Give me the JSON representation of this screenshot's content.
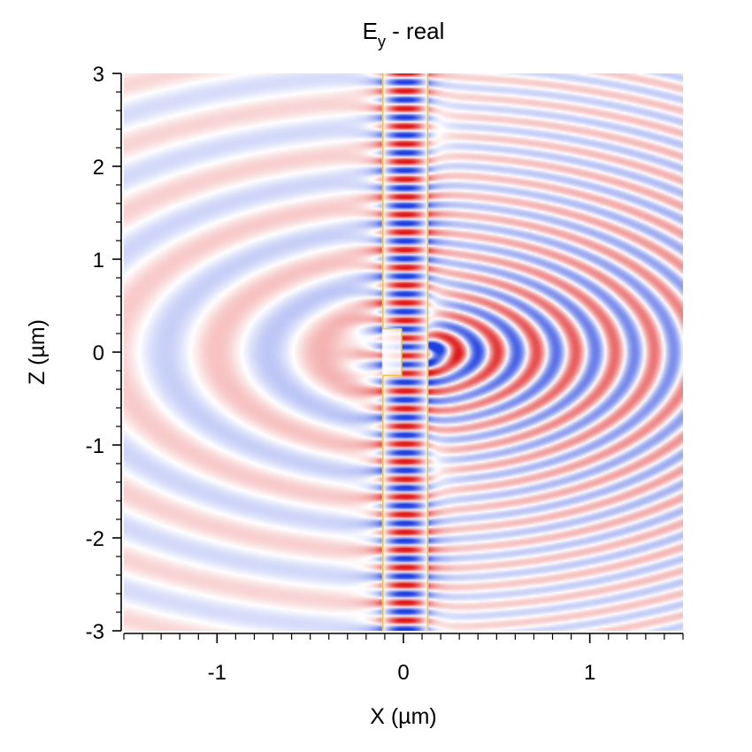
{
  "chart_data": {
    "type": "heatmap",
    "title": {
      "symbol": "E",
      "subscript": "y",
      "suffix": " - real"
    },
    "xlabel": "X (µm)",
    "ylabel": "Z (µm)",
    "xlim": [
      -1.5,
      1.5
    ],
    "ylim": [
      -3,
      3
    ],
    "x_ticks": [
      {
        "value": -1,
        "label": "-1"
      },
      {
        "value": 0,
        "label": "0"
      },
      {
        "value": 1,
        "label": "1"
      }
    ],
    "y_ticks": [
      {
        "value": 3,
        "label": "3"
      },
      {
        "value": 2,
        "label": "2"
      },
      {
        "value": 1,
        "label": "1"
      },
      {
        "value": 0,
        "label": "0"
      },
      {
        "value": -1,
        "label": "-1"
      },
      {
        "value": -2,
        "label": "-2"
      },
      {
        "value": -3,
        "label": "-3"
      }
    ],
    "x_minor_step": 0.1,
    "y_minor_step": 0.2,
    "colormap": {
      "negative": "#1f3fe0",
      "zero": "#ffffff",
      "positive": "#e01a1a"
    },
    "grid": false,
    "waveguide": {
      "x_range": [
        -0.11,
        0.13
      ],
      "gap_z": [
        -0.25,
        0.25
      ],
      "structure_color": "#e5c84a"
    }
  }
}
